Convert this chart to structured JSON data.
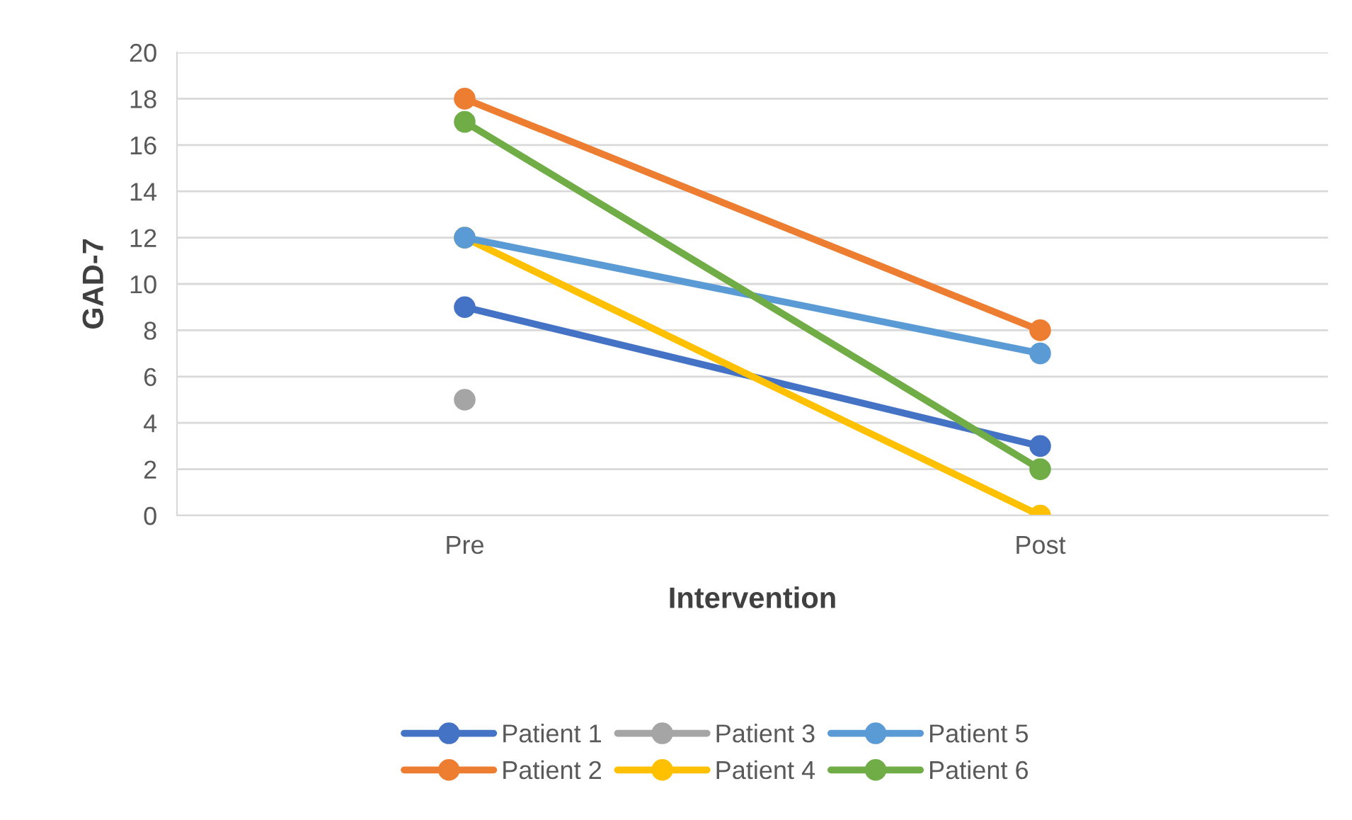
{
  "chart_data": {
    "type": "line",
    "xlabel": "Intervention",
    "ylabel": "GAD-7",
    "categories": [
      "Pre",
      "Post"
    ],
    "series": [
      {
        "name": "Patient 1",
        "color": "#4472c4",
        "values": [
          9,
          3
        ]
      },
      {
        "name": "Patient 2",
        "color": "#ed7d31",
        "values": [
          18,
          8
        ]
      },
      {
        "name": "Patient 3",
        "color": "#a5a5a5",
        "values": [
          5,
          null
        ]
      },
      {
        "name": "Patient 4",
        "color": "#ffc000",
        "values": [
          12,
          0
        ]
      },
      {
        "name": "Patient 5",
        "color": "#5b9bd5",
        "values": [
          12,
          7
        ]
      },
      {
        "name": "Patient 6",
        "color": "#70ad47",
        "values": [
          17,
          2
        ]
      }
    ],
    "ylim": [
      0,
      20
    ],
    "yticks": [
      0,
      2,
      4,
      6,
      8,
      10,
      12,
      14,
      16,
      18,
      20
    ],
    "grid": "y",
    "legend": "bottom",
    "marker": "circle",
    "line_style": "solid"
  }
}
